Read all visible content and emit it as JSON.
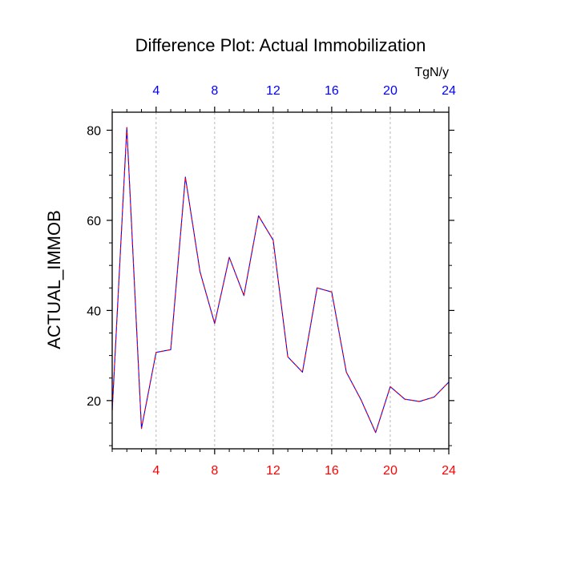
{
  "chart_data": {
    "type": "line",
    "title": "Difference Plot: Actual Immobilization",
    "ylabel": "ACTUAL_IMMOB",
    "top_axis_units": "TgN/y",
    "xlim": [
      1,
      24
    ],
    "ylim": [
      9.3,
      84
    ],
    "x_ticks": [
      4,
      8,
      12,
      16,
      20,
      24
    ],
    "y_ticks": [
      20,
      40,
      60,
      80
    ],
    "y_minor_ticks": [
      10,
      15,
      25,
      30,
      35,
      45,
      50,
      55,
      65,
      70,
      75
    ],
    "grid": "vertical-dashed",
    "colors": {
      "bottom_tick_labels": "#ff0000",
      "top_tick_labels": "#0000ff",
      "line_solid": "#0000ff",
      "line_dashed": "#ff0000",
      "axis": "#000000",
      "grid": "#b8b8b8"
    },
    "series": [
      {
        "name": "ACTUAL_IMMOB",
        "x": [
          1,
          2,
          3,
          4,
          5,
          6,
          7,
          8,
          9,
          10,
          11,
          12,
          13,
          14,
          15,
          16,
          17,
          18,
          19,
          20,
          21,
          22,
          23,
          24
        ],
        "values": [
          17.8,
          80.6,
          13.8,
          30.7,
          31.3,
          69.6,
          48.6,
          37.1,
          51.8,
          43.3,
          61.0,
          55.6,
          29.7,
          26.3,
          45.0,
          44.1,
          26.3,
          20.2,
          12.9,
          23.1,
          20.3,
          19.8,
          20.8,
          24.1
        ]
      }
    ]
  }
}
